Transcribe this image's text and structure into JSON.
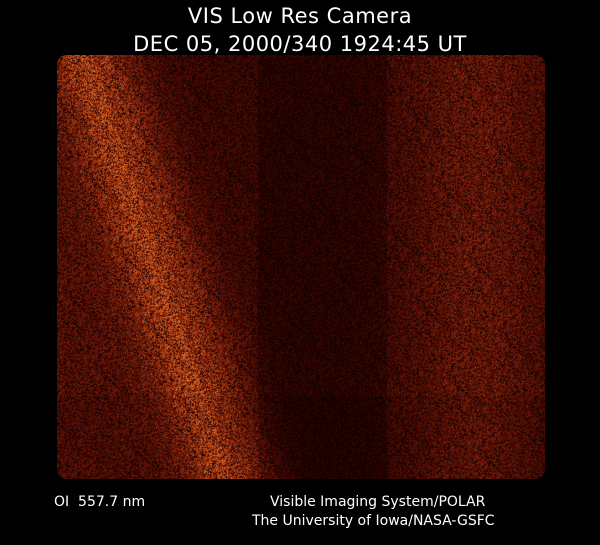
{
  "header": {
    "title": "VIS Low Res Camera",
    "timestamp": "DEC 05, 2000/340 1924:45 UT"
  },
  "image": {
    "description_icon": "auroral-image",
    "tint_color": "#a8401a"
  },
  "footer": {
    "filter": "OI  557.7 nm",
    "credit_line1": "Visible Imaging System/POLAR",
    "credit_line2": "The University of Iowa/NASA-GSFC"
  }
}
